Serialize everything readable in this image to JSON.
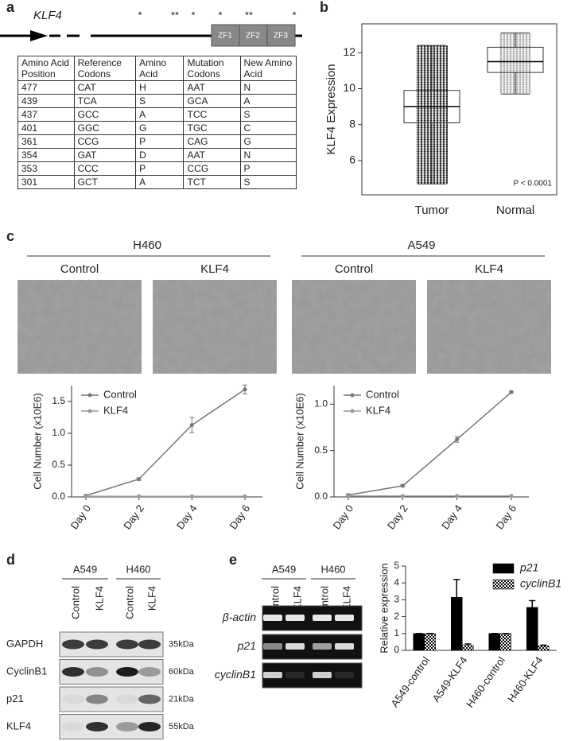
{
  "panel_labels": [
    "a",
    "b",
    "c",
    "d",
    "e"
  ],
  "gene_diagram": {
    "gene": "KLF4",
    "domains": [
      "ZF1",
      "ZF2",
      "ZF3"
    ],
    "mutation_marks": [
      "*",
      "**",
      "*",
      "*",
      "**",
      "*"
    ]
  },
  "table": {
    "header": [
      "Amino Acid Position",
      "Reference Codons",
      "Amino Acid",
      "Mutation Codons",
      "New Amino Acid"
    ],
    "rows": [
      [
        "477",
        "CAT",
        "H",
        "AAT",
        "N"
      ],
      [
        "439",
        "TCA",
        "S",
        "GCA",
        "A"
      ],
      [
        "437",
        "GCC",
        "A",
        "TCC",
        "S"
      ],
      [
        "401",
        "GGC",
        "G",
        "TGC",
        "C"
      ],
      [
        "361",
        "CCG",
        "P",
        "CAG",
        "G"
      ],
      [
        "354",
        "GAT",
        "D",
        "AAT",
        "N"
      ],
      [
        "353",
        "CCC",
        "P",
        "CCG",
        "P"
      ],
      [
        "301",
        "GCT",
        "A",
        "TCT",
        "S"
      ]
    ]
  },
  "micrographs": {
    "groups": [
      {
        "cell_line": "H460",
        "conditions": [
          "Control",
          "KLF4"
        ]
      },
      {
        "cell_line": "A549",
        "conditions": [
          "Control",
          "KLF4"
        ]
      }
    ]
  },
  "chart_data": [
    {
      "type": "box",
      "ylabel": "KLF4 Expression",
      "categories": [
        "Tumor",
        "Normal"
      ],
      "boxes": [
        {
          "whisker_low": 4.7,
          "q1": 8.1,
          "median": 9.0,
          "q3": 9.9,
          "whisker_high": 12.4
        },
        {
          "whisker_low": 9.7,
          "q1": 10.9,
          "median": 11.5,
          "q3": 12.3,
          "whisker_high": 13.1
        }
      ],
      "point_colors": [
        "#222222",
        "#aaaaaa"
      ],
      "ylim": [
        4.1,
        13.6
      ],
      "yticks": [
        6,
        8,
        10,
        12
      ],
      "annotation": "P < 0.0001"
    },
    {
      "type": "line",
      "ylabel": "Cell Number (x10E6)",
      "categories": [
        "Day 0",
        "Day 2",
        "Day 4",
        "Day 6"
      ],
      "series": [
        {
          "name": "Control",
          "color": "#777777",
          "values": [
            0.02,
            0.28,
            1.13,
            1.69
          ],
          "errors": [
            0.01,
            0.02,
            0.12,
            0.07
          ]
        },
        {
          "name": "KLF4",
          "color": "#999999",
          "values": [
            0.01,
            0.01,
            0.01,
            0.01
          ]
        }
      ],
      "ylim": [
        0,
        1.75
      ],
      "yticks": [
        {
          "value": 0,
          "label": "0.0"
        },
        0.5,
        {
          "value": 1,
          "label": "1.0"
        },
        1.5
      ]
    },
    {
      "type": "line",
      "ylabel": "Cell Number (x10E6)",
      "categories": [
        "Day 0",
        "Day 2",
        "Day 4",
        "Day 6"
      ],
      "series": [
        {
          "name": "Control",
          "color": "#777777",
          "values": [
            0.02,
            0.12,
            0.62,
            1.13
          ],
          "errors": [
            0.01,
            0.01,
            0.03,
            0.01
          ]
        },
        {
          "name": "KLF4",
          "color": "#999999",
          "values": [
            0.01,
            0.01,
            0.01,
            0.01
          ]
        }
      ],
      "ylim": [
        0,
        1.2
      ],
      "yticks": [
        {
          "value": 0,
          "label": "0.0"
        },
        0.5,
        {
          "value": 1,
          "label": "1.0"
        }
      ]
    },
    {
      "type": "bar",
      "ylabel": "Relative expression",
      "categories": [
        "A549-control",
        "A549-KLF4",
        "H460-control",
        "H460-KLF4"
      ],
      "series": [
        {
          "name": "p21",
          "color": "#000000",
          "values": [
            1,
            3.15,
            1,
            2.55
          ],
          "errors": [
            0,
            1.05,
            0,
            0.4
          ]
        },
        {
          "name": "cyclinB1",
          "color": "#000000",
          "pattern": "checker",
          "values": [
            1,
            0.3,
            1,
            0.27
          ],
          "errors": [
            0,
            0.08,
            0,
            0.04
          ]
        }
      ],
      "ylim": [
        0,
        5
      ],
      "yticks": [
        0,
        1,
        2,
        3,
        4,
        5
      ]
    }
  ],
  "western_blot": {
    "cell_lines": [
      "A549",
      "H460"
    ],
    "lanes": [
      "Control",
      "KLF4",
      "Control",
      "KLF4"
    ],
    "rows": [
      {
        "label": "GAPDH",
        "size": "35kDa"
      },
      {
        "label": "CyclinB1",
        "size": "60kDa"
      },
      {
        "label": "p21",
        "size": "21kDa"
      },
      {
        "label": "KLF4",
        "size": "55kDa"
      }
    ]
  },
  "gel": {
    "cell_lines": [
      "A549",
      "H460"
    ],
    "lanes": [
      "Control",
      "KLF4",
      "Control",
      "KLF4"
    ],
    "rows": [
      "β-actin",
      "p21",
      "cyclinB1"
    ]
  }
}
